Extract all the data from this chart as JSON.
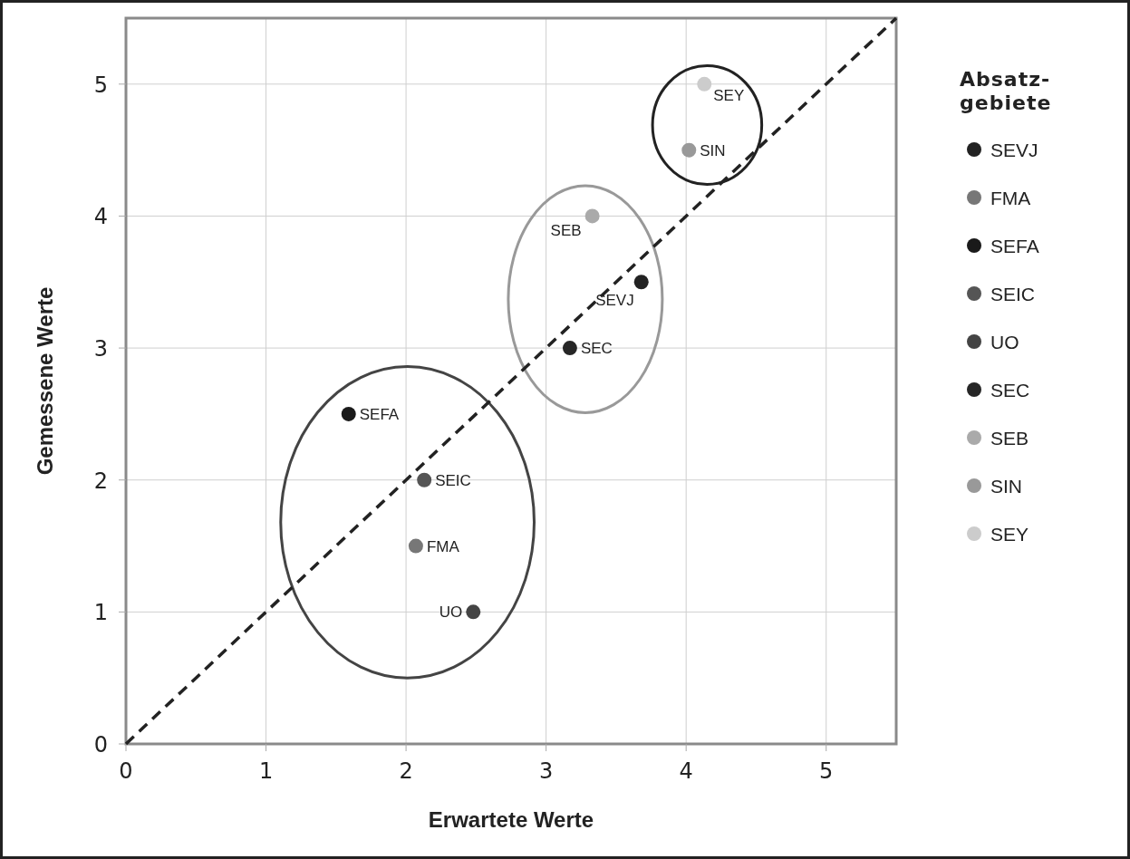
{
  "chart_data": {
    "type": "scatter",
    "xlabel": "Erwartete Werte",
    "ylabel": "Gemessene Werte",
    "legend_title": "Absatz-gebiete",
    "xlim": [
      0,
      5.5
    ],
    "ylim": [
      0,
      5.5
    ],
    "xticks": [
      0,
      1,
      2,
      3,
      4,
      5
    ],
    "yticks": [
      0,
      1,
      2,
      3,
      4,
      5
    ],
    "grid": true,
    "legend": "right",
    "marker": "circle",
    "series": [
      {
        "name": "SEVJ",
        "color": "#222222",
        "x": [
          3.68
        ],
        "values": [
          3.5
        ]
      },
      {
        "name": "FMA",
        "color": "#777777",
        "x": [
          2.07
        ],
        "values": [
          1.5
        ]
      },
      {
        "name": "SEFA",
        "color": "#1a1a1a",
        "x": [
          1.59
        ],
        "values": [
          2.5
        ]
      },
      {
        "name": "SEIC",
        "color": "#555555",
        "x": [
          2.13
        ],
        "values": [
          2.0
        ]
      },
      {
        "name": "UO",
        "color": "#444444",
        "x": [
          2.48
        ],
        "values": [
          1.0
        ]
      },
      {
        "name": "SEC",
        "color": "#262626",
        "x": [
          3.17
        ],
        "values": [
          3.0
        ]
      },
      {
        "name": "SEB",
        "color": "#aaaaaa",
        "x": [
          3.33
        ],
        "values": [
          4.0
        ]
      },
      {
        "name": "SIN",
        "color": "#999999",
        "x": [
          4.02
        ],
        "values": [
          4.5
        ]
      },
      {
        "name": "SEY",
        "color": "#cccccc",
        "x": [
          4.13
        ],
        "values": [
          5.0
        ]
      },
      {
        "type": "line",
        "color": "#222222",
        "line_style": "dashed",
        "marker": "none",
        "x": [
          0,
          5.5
        ],
        "values": [
          0,
          5.5
        ]
      }
    ]
  }
}
